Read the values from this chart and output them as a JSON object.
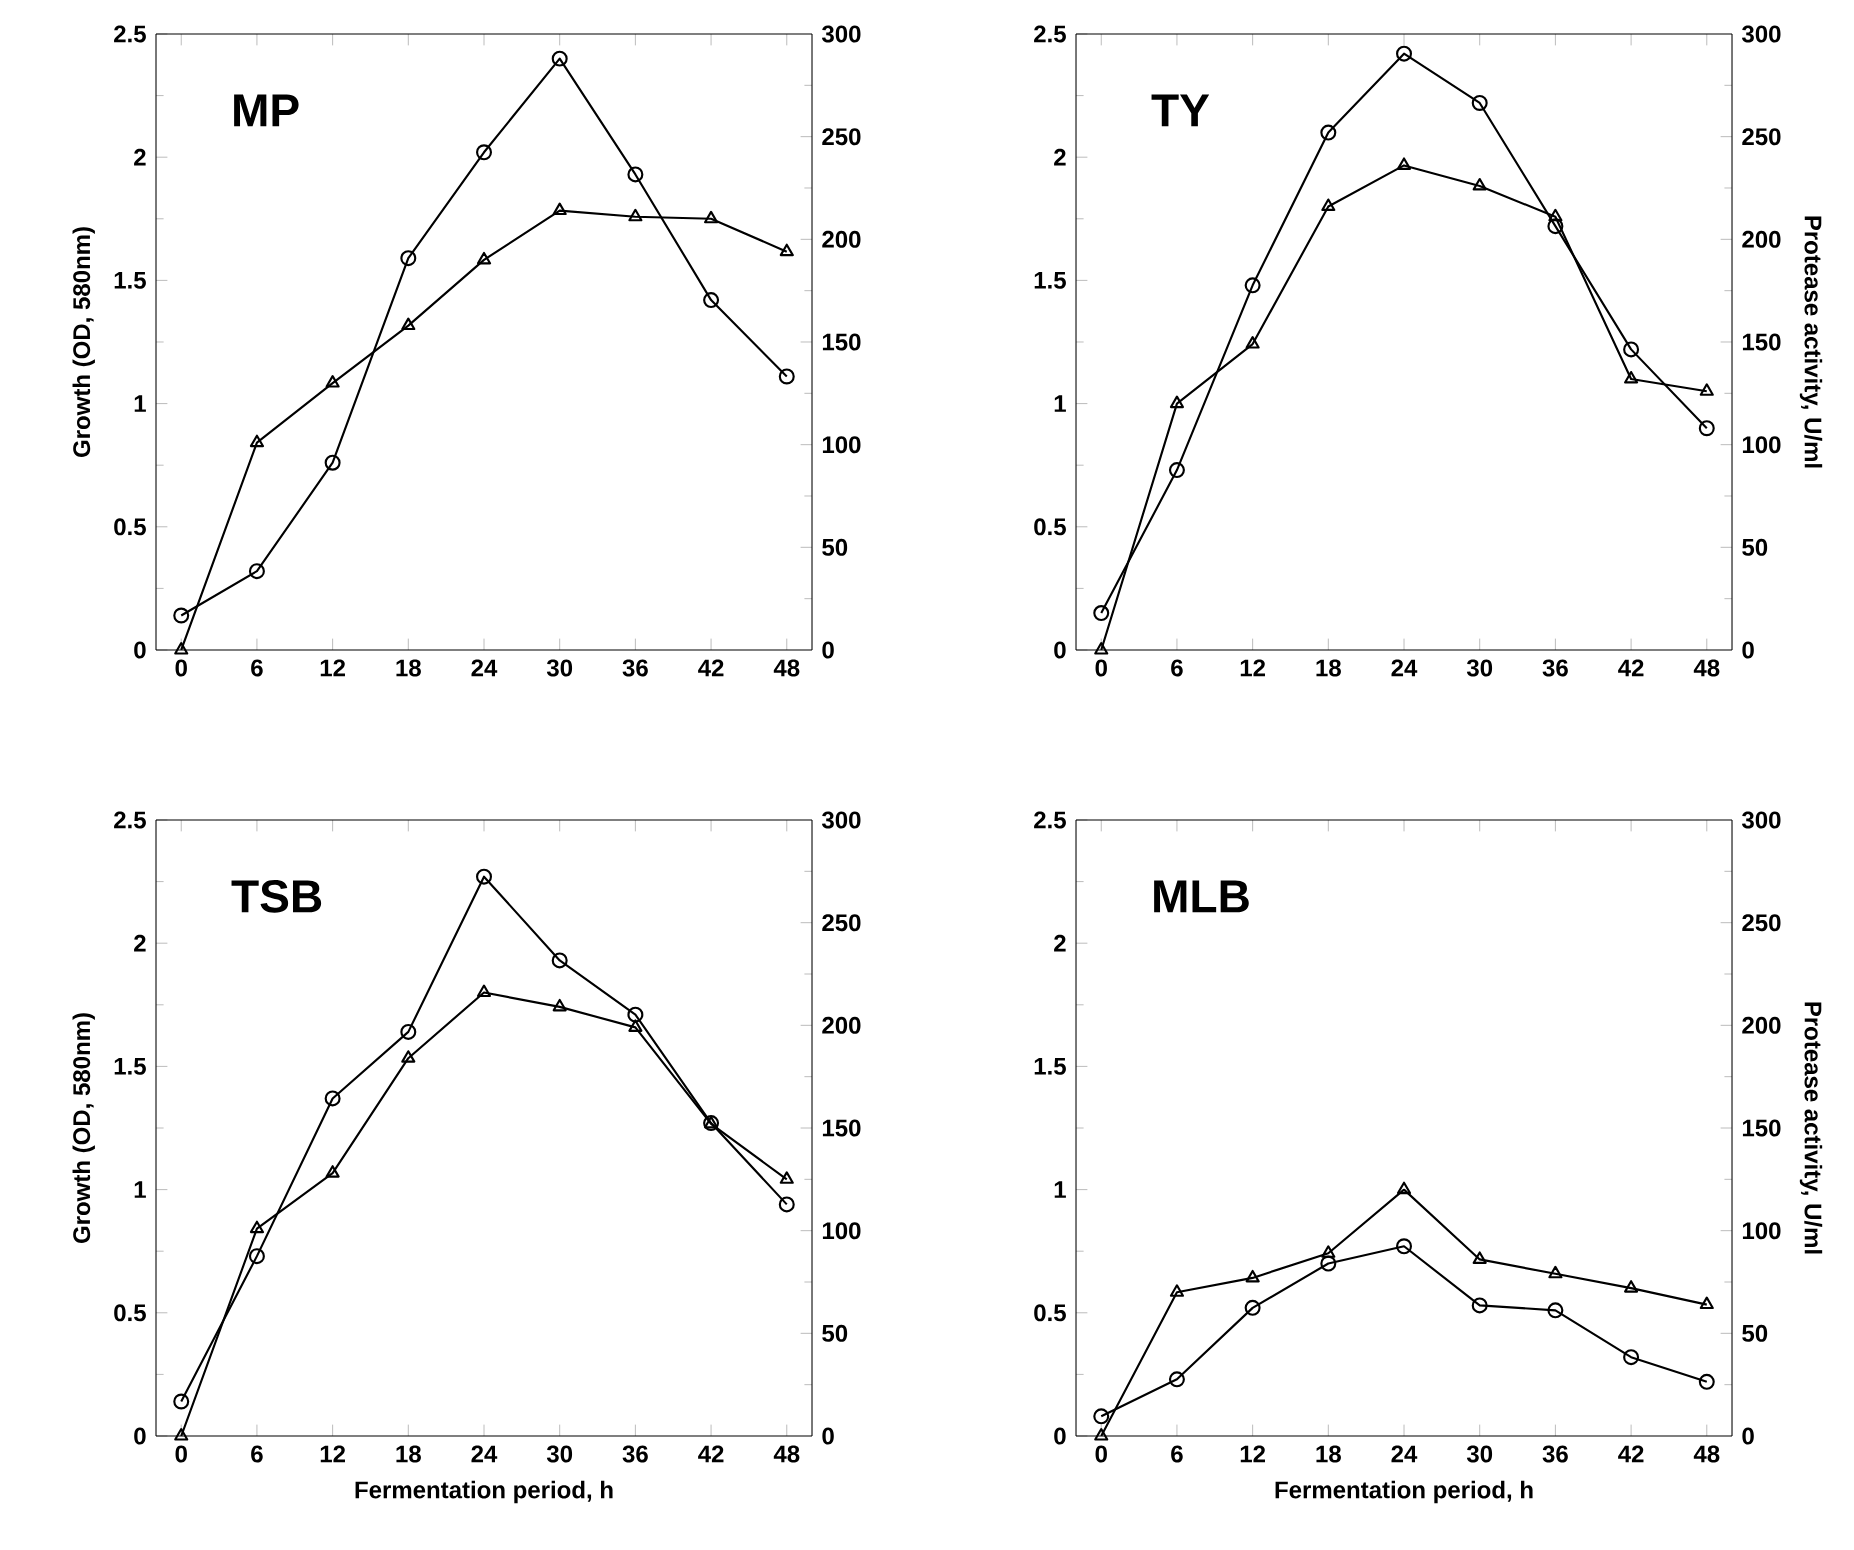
{
  "chart_data": [
    {
      "type": "line",
      "title": "MP",
      "ylabel": "Growth (OD, 580nm)",
      "x": [
        0,
        6,
        12,
        18,
        24,
        30,
        36,
        42,
        48
      ],
      "xlim": [
        -2,
        50
      ],
      "xticks": [
        0,
        6,
        12,
        18,
        24,
        30,
        36,
        42,
        48
      ],
      "ylim": [
        0,
        2.5
      ],
      "yticks": [
        0,
        0.5,
        1,
        1.5,
        2,
        2.5
      ],
      "y2lim": [
        0,
        300
      ],
      "y2ticks": [
        0,
        50,
        100,
        150,
        200,
        250,
        300
      ],
      "series": [
        {
          "color": "#000000",
          "marker": "circle",
          "values": [
            0.14,
            0.32,
            0.76,
            1.59,
            2.02,
            2.4,
            1.93,
            1.42,
            1.11
          ]
        },
        {
          "color": "#000000",
          "marker": "triangle",
          "axis": "y2",
          "values": [
            0,
            101,
            130,
            158,
            190,
            214,
            211,
            210,
            194
          ]
        }
      ]
    },
    {
      "type": "line",
      "title": "TY",
      "y2label": "Protease activity, U/ml",
      "x": [
        0,
        6,
        12,
        18,
        24,
        30,
        36,
        42,
        48
      ],
      "xlim": [
        -2,
        50
      ],
      "xticks": [
        0,
        6,
        12,
        18,
        24,
        30,
        36,
        42,
        48
      ],
      "ylim": [
        0,
        2.5
      ],
      "yticks": [
        0,
        0.5,
        1,
        1.5,
        2,
        2.5
      ],
      "y2lim": [
        0,
        300
      ],
      "y2ticks": [
        0,
        50,
        100,
        150,
        200,
        250,
        300
      ],
      "series": [
        {
          "color": "#000000",
          "marker": "circle",
          "values": [
            0.15,
            0.73,
            1.48,
            2.1,
            2.42,
            2.22,
            1.72,
            1.22,
            0.9
          ]
        },
        {
          "color": "#000000",
          "marker": "triangle",
          "axis": "y2",
          "values": [
            0,
            120,
            149,
            216,
            236,
            226,
            211,
            132,
            126
          ]
        }
      ]
    },
    {
      "type": "line",
      "title": "TSB",
      "xlabel": "Fermentation period, h",
      "ylabel": "Growth (OD, 580nm)",
      "x": [
        0,
        6,
        12,
        18,
        24,
        30,
        36,
        42,
        48
      ],
      "xlim": [
        -2,
        50
      ],
      "xticks": [
        0,
        6,
        12,
        18,
        24,
        30,
        36,
        42,
        48
      ],
      "ylim": [
        0,
        2.5
      ],
      "yticks": [
        0,
        0.5,
        1,
        1.5,
        2,
        2.5
      ],
      "y2lim": [
        0,
        300
      ],
      "y2ticks": [
        0,
        50,
        100,
        150,
        200,
        250,
        300
      ],
      "series": [
        {
          "color": "#000000",
          "marker": "circle",
          "values": [
            0.14,
            0.73,
            1.37,
            1.64,
            2.27,
            1.93,
            1.71,
            1.27,
            0.94
          ]
        },
        {
          "color": "#000000",
          "marker": "triangle",
          "axis": "y2",
          "values": [
            0,
            101,
            128,
            184,
            216,
            209,
            199,
            152,
            125
          ]
        }
      ]
    },
    {
      "type": "line",
      "title": "MLB",
      "xlabel": "Fermentation period, h",
      "y2label": "Protease activity, U/ml",
      "x": [
        0,
        6,
        12,
        18,
        24,
        30,
        36,
        42,
        48
      ],
      "xlim": [
        -2,
        50
      ],
      "xticks": [
        0,
        6,
        12,
        18,
        24,
        30,
        36,
        42,
        48
      ],
      "ylim": [
        0,
        2.5
      ],
      "yticks": [
        0,
        0.5,
        1,
        1.5,
        2,
        2.5
      ],
      "y2lim": [
        0,
        300
      ],
      "y2ticks": [
        0,
        50,
        100,
        150,
        200,
        250,
        300
      ],
      "series": [
        {
          "color": "#000000",
          "marker": "circle",
          "values": [
            0.08,
            0.23,
            0.52,
            0.7,
            0.77,
            0.53,
            0.51,
            0.32,
            0.22
          ]
        },
        {
          "color": "#000000",
          "marker": "triangle",
          "axis": "y2",
          "values": [
            0,
            70,
            77,
            89,
            120,
            86,
            79,
            72,
            64
          ]
        }
      ]
    }
  ]
}
